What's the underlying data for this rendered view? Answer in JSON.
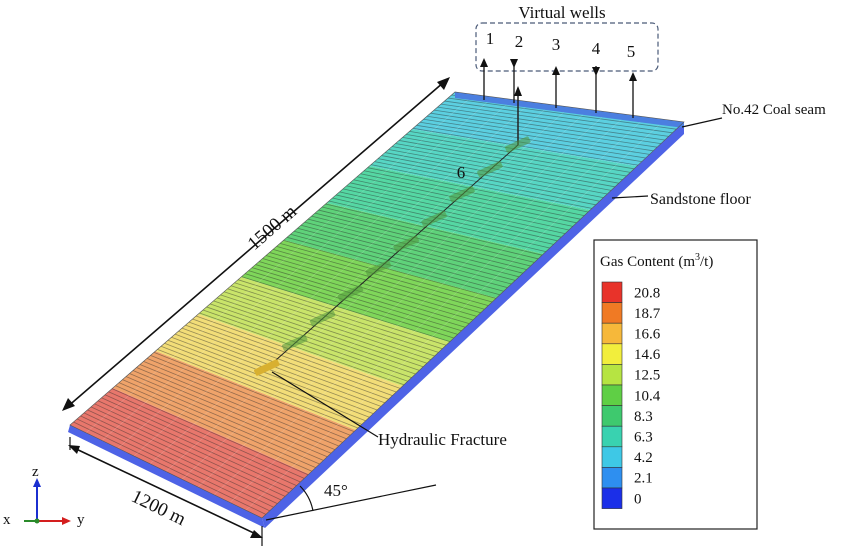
{
  "labels": {
    "virtual_wells_title": "Virtual wells",
    "well_numbers": [
      "1",
      "2",
      "3",
      "4",
      "5"
    ],
    "center_well": "6",
    "coal_seam": "No.42 Coal seam",
    "sandstone_floor": "Sandstone floor",
    "length": "1500 m",
    "width": "1200 m",
    "angle": "45°",
    "hydraulic_fracture": "Hydraulic Fracture"
  },
  "axes": {
    "z": "z",
    "x": "x",
    "y": "y"
  },
  "legend": {
    "title_prefix": "Gas Content (m",
    "title_sup": "3",
    "title_suffix": "/t)",
    "levels": [
      {
        "value": "20.8",
        "color": "#e8332a"
      },
      {
        "value": "18.7",
        "color": "#f07a24"
      },
      {
        "value": "16.6",
        "color": "#f6b83a"
      },
      {
        "value": "14.6",
        "color": "#f2ee3c"
      },
      {
        "value": "12.5",
        "color": "#b6e442"
      },
      {
        "value": "10.4",
        "color": "#5fcf45"
      },
      {
        "value": "8.3",
        "color": "#3ec96e"
      },
      {
        "value": "6.3",
        "color": "#39d2b0"
      },
      {
        "value": "4.2",
        "color": "#3ec8e6"
      },
      {
        "value": "2.1",
        "color": "#2e8ff0"
      },
      {
        "value": "0",
        "color": "#1b2fe8"
      }
    ]
  },
  "slab_bands": [
    "#e8776c",
    "#efa36a",
    "#f2dd78",
    "#c9e46a",
    "#7fd65a",
    "#5fd27a",
    "#55d7a3",
    "#57d6c4",
    "#5ccfe0"
  ],
  "colors": {
    "sandstone": "#4e63e6",
    "far_end": "#4b7fe0",
    "fracture": "#d8b030"
  }
}
